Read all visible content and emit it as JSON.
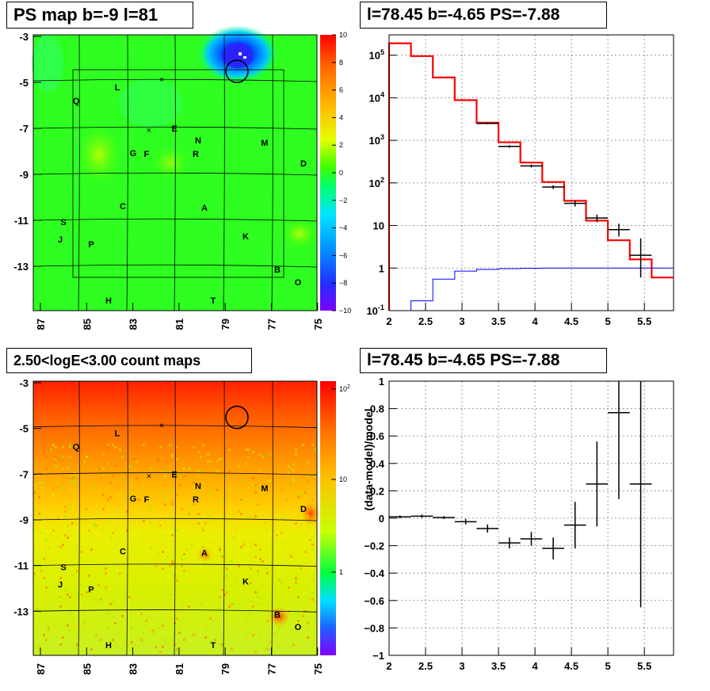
{
  "panels": {
    "tl": {
      "title": "PS map b=-9 l=81"
    },
    "tr": {
      "title": "l=78.45 b=-4.65 PS=-7.88"
    },
    "bl": {
      "title": "2.50<logE<3.00 count maps"
    },
    "br": {
      "title": "l=78.45 b=-4.65 PS=-7.88"
    }
  },
  "chart_data": [
    {
      "type": "heatmap",
      "title": "PS map b=-9 l=81",
      "x_ticks": [
        "87",
        "85",
        "83",
        "81",
        "79",
        "77",
        "75"
      ],
      "y_ticks": [
        "-3",
        "-5",
        "-7",
        "-9",
        "-11",
        "-13"
      ],
      "xlim": [
        87,
        75
      ],
      "ylim": [
        -3,
        -15
      ],
      "colorbar": {
        "min": -10,
        "max": 10,
        "ticks": [
          "10",
          "8",
          "6",
          "4",
          "2",
          "0",
          "−2",
          "−4",
          "−6",
          "−8",
          "−10"
        ]
      },
      "source_labels": [
        "L",
        "Q",
        "E",
        "N",
        "M",
        "G",
        "F",
        "R",
        "D",
        "C",
        "A",
        "S",
        "J",
        "P",
        "K",
        "B",
        "O",
        "H",
        "T"
      ],
      "marked_source": {
        "l": 78.45,
        "b": -4.65
      }
    },
    {
      "type": "line",
      "title": "l=78.45 b=-4.65 PS=-7.88",
      "yscale": "log",
      "xlim": [
        2,
        5.9
      ],
      "ylim": [
        0.1,
        300000
      ],
      "x_ticks": [
        "2",
        "2.5",
        "3",
        "3.5",
        "4",
        "4.5",
        "5",
        "5.5"
      ],
      "y_ticks": [
        "10^5",
        "10^4",
        "10^3",
        "10^2",
        "10",
        "1",
        "10^-1"
      ],
      "series": [
        {
          "kind": "model",
          "color": "#ff0000",
          "edges": [
            2.0,
            2.3,
            2.6,
            2.9,
            3.2,
            3.5,
            3.8,
            4.1,
            4.4,
            4.7,
            5.0,
            5.3,
            5.6,
            5.9
          ],
          "values": [
            190000,
            95000,
            30000,
            8800,
            2600,
            900,
            300,
            105,
            38,
            13,
            4.5,
            1.6,
            0.6
          ]
        },
        {
          "kind": "point-source",
          "color": "#0000ff",
          "edges": [
            2.3,
            2.6,
            2.9,
            3.2,
            3.5,
            3.8,
            4.1,
            4.4,
            4.7,
            5.0,
            5.3,
            5.6,
            5.9
          ],
          "values": [
            0.17,
            0.55,
            0.85,
            0.93,
            0.97,
            0.99,
            1.0,
            1.0,
            1.0,
            1.0,
            1.0,
            1.0
          ]
        },
        {
          "kind": "data",
          "color": "#000000",
          "x": [
            3.35,
            3.65,
            3.95,
            4.25,
            4.55,
            4.85,
            5.15,
            5.45
          ],
          "xerr": 0.15,
          "y": [
            2500,
            720,
            250,
            80,
            33,
            15,
            8,
            2
          ],
          "ylo": [
            2400,
            670,
            230,
            72,
            28,
            12,
            5.5,
            0.6
          ],
          "yhi": [
            2600,
            770,
            270,
            88,
            38,
            18,
            11,
            5
          ]
        }
      ]
    },
    {
      "type": "heatmap",
      "title": "2.50<logE<3.00 count maps",
      "x_ticks": [
        "87",
        "85",
        "83",
        "81",
        "79",
        "77",
        "75"
      ],
      "y_ticks": [
        "-3",
        "-5",
        "-7",
        "-9",
        "-11",
        "-13"
      ],
      "xlim": [
        87,
        75
      ],
      "ylim": [
        -3,
        -15
      ],
      "colorbar": {
        "scale": "log",
        "ticks": [
          "10^2",
          "10",
          "1"
        ]
      },
      "source_labels": [
        "L",
        "Q",
        "E",
        "N",
        "M",
        "G",
        "F",
        "R",
        "D",
        "C",
        "A",
        "S",
        "J",
        "P",
        "K",
        "B",
        "O",
        "H",
        "T"
      ]
    },
    {
      "type": "scatter",
      "title": "l=78.45 b=-4.65 PS=-7.88",
      "ylabel": "(data-model)/model",
      "xlim": [
        2,
        5.9
      ],
      "ylim": [
        -1,
        1
      ],
      "x_ticks": [
        "2",
        "2.5",
        "3",
        "3.5",
        "4",
        "4.5",
        "5",
        "5.5"
      ],
      "y_ticks": [
        "1",
        "0.8",
        "0.6",
        "0.4",
        "0.2",
        "0",
        "−0.2",
        "−0.4",
        "−0.6",
        "−0.8",
        "−1"
      ],
      "points": {
        "x": [
          2.15,
          2.45,
          2.75,
          3.05,
          3.35,
          3.65,
          3.95,
          4.25,
          4.55,
          4.85,
          5.15,
          5.45
        ],
        "xerr": 0.15,
        "y": [
          0.01,
          0.015,
          0.005,
          -0.025,
          -0.075,
          -0.18,
          -0.15,
          -0.22,
          -0.05,
          0.25,
          0.77,
          0.25
        ],
        "yerr": [
          0.01,
          0.012,
          0.01,
          0.02,
          0.03,
          0.04,
          0.05,
          0.08,
          0.17,
          0.31,
          0.63,
          0.9
        ]
      }
    }
  ]
}
